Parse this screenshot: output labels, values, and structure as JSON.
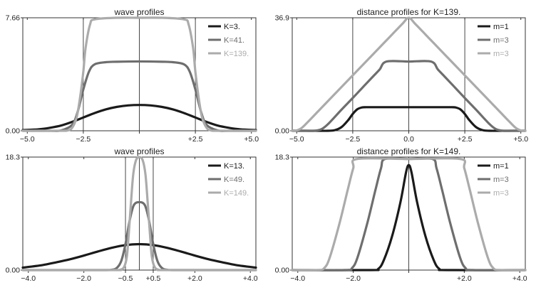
{
  "chart_data": [
    {
      "type": "line",
      "title": "wave profiles",
      "xlim": [
        -5.2,
        5.2
      ],
      "ylim": [
        0,
        7.66
      ],
      "xticks": [
        -5.0,
        -2.5,
        0,
        2.5,
        5.0
      ],
      "xtick_labels": [
        "−5.0",
        "−2.5",
        "",
        "+2.5",
        "+5.0"
      ],
      "yticks": [
        0,
        7.66
      ],
      "ytick_labels": [
        "0.00",
        "7.66"
      ],
      "vlines": [
        -2.5,
        0,
        2.5
      ],
      "legend": "top-right",
      "series": [
        {
          "name": "K=3.",
          "color": "#1a1a1a",
          "x": [
            -5.2,
            -4.5,
            -4,
            -3.5,
            -3,
            -2.5,
            -2,
            -1.5,
            -1,
            -0.5,
            0,
            0.5,
            1,
            1.5,
            2,
            2.5,
            3,
            3.5,
            4,
            4.5,
            5.2
          ],
          "y": [
            0.05,
            0.1,
            0.2,
            0.35,
            0.6,
            0.9,
            1.2,
            1.45,
            1.62,
            1.72,
            1.75,
            1.72,
            1.62,
            1.45,
            1.2,
            0.9,
            0.6,
            0.35,
            0.2,
            0.1,
            0.05
          ]
        },
        {
          "name": "K=41.",
          "color": "#6e6e6e",
          "x": [
            -5.2,
            -4,
            -3.5,
            -3,
            -2.75,
            -2.5,
            -2.25,
            -2,
            -1.5,
            -1,
            0,
            1,
            1.5,
            2,
            2.25,
            2.5,
            2.75,
            3,
            3.5,
            4,
            5.2
          ],
          "y": [
            0,
            0,
            0.02,
            0.4,
            1.3,
            2.8,
            4.0,
            4.5,
            4.65,
            4.68,
            4.7,
            4.68,
            4.65,
            4.5,
            4.0,
            2.8,
            1.3,
            0.4,
            0.02,
            0,
            0
          ]
        },
        {
          "name": "K=139.",
          "color": "#ababab",
          "x": [
            -5.2,
            -3.5,
            -3.2,
            -3,
            -2.8,
            -2.65,
            -2.5,
            -2.4,
            -2.2,
            -2,
            -1,
            0,
            1,
            2,
            2.2,
            2.4,
            2.5,
            2.65,
            2.8,
            3,
            3.2,
            3.5,
            5.2
          ],
          "y": [
            0,
            0,
            0.02,
            0.2,
            0.9,
            2.2,
            4.0,
            5.6,
            7.2,
            7.55,
            7.66,
            7.66,
            7.66,
            7.55,
            7.2,
            5.6,
            4.0,
            2.2,
            0.9,
            0.2,
            0.02,
            0,
            0
          ]
        }
      ]
    },
    {
      "type": "line",
      "title": "distance profiles for K=139.",
      "xlim": [
        -5.2,
        5.2
      ],
      "ylim": [
        0,
        36.9
      ],
      "xticks": [
        -5.0,
        -2.5,
        0,
        2.5,
        5.0
      ],
      "xtick_labels": [
        "−5.0",
        "−2.5",
        "0.0",
        "+2.5",
        "+5.0"
      ],
      "yticks": [
        0,
        36.9
      ],
      "ytick_labels": [
        "0.00",
        "36.9"
      ],
      "vlines": [
        -2.5,
        0,
        2.5
      ],
      "legend": "top-right",
      "series": [
        {
          "name": "m=1",
          "color": "#1a1a1a",
          "x": [
            -5.2,
            -4,
            -3.6,
            -3.3,
            -3,
            -2.7,
            -2.5,
            -2.3,
            -2.1,
            -1.9,
            -1,
            0,
            1,
            1.9,
            2.1,
            2.3,
            2.5,
            2.7,
            3,
            3.3,
            3.6,
            4,
            5.2
          ],
          "y": [
            0,
            0,
            0,
            0.2,
            1.2,
            3.5,
            5.5,
            7.0,
            7.6,
            7.7,
            7.7,
            7.7,
            7.7,
            7.7,
            7.6,
            7.0,
            5.5,
            3.5,
            1.2,
            0.2,
            0,
            0,
            0
          ]
        },
        {
          "name": "m=3",
          "color": "#6e6e6e",
          "x": [
            -5.2,
            -4.6,
            -4.2,
            -3.9,
            -3.6,
            -3,
            -2.5,
            -2,
            -1.6,
            -1.3,
            -1,
            0,
            1,
            1.3,
            1.6,
            2,
            2.5,
            3,
            3.6,
            3.9,
            4.2,
            4.6,
            5.2
          ],
          "y": [
            0,
            0,
            0,
            0.5,
            2.2,
            6.9,
            10.7,
            14.6,
            17.7,
            20.0,
            22.6,
            22.6,
            22.6,
            20.0,
            17.7,
            14.6,
            10.7,
            6.9,
            2.2,
            0.5,
            0,
            0,
            0
          ]
        },
        {
          "name": "m=3",
          "color": "#ababab",
          "x": [
            -5.2,
            -5.05,
            -4.8,
            -4.5,
            -4,
            -3,
            -2,
            -1,
            -0.3,
            0,
            0.3,
            1,
            2,
            3,
            4,
            4.5,
            4.8,
            5.05,
            5.2
          ],
          "y": [
            0,
            0,
            0.8,
            2.9,
            6.7,
            14.3,
            21.9,
            29.5,
            34.8,
            36.9,
            34.8,
            29.5,
            21.9,
            14.3,
            6.7,
            2.9,
            0.8,
            0,
            0
          ]
        }
      ]
    },
    {
      "type": "line",
      "title": "wave profiles",
      "xlim": [
        -4.2,
        4.2
      ],
      "ylim": [
        0,
        18.3
      ],
      "xticks": [
        -4.0,
        -2.0,
        -0.5,
        0.5,
        2.0,
        4.0
      ],
      "xtick_labels": [
        "−4.0",
        "−2.0",
        "−0.5",
        "+0.5",
        "+2.0",
        "+4.0"
      ],
      "yticks": [
        0,
        18.3
      ],
      "ytick_labels": [
        "0.00",
        "18.3"
      ],
      "vlines": [
        -0.5,
        0,
        0.5
      ],
      "legend": "top-right",
      "series": [
        {
          "name": "K=13.",
          "color": "#1a1a1a",
          "x": [
            -4.2,
            -3.5,
            -3,
            -2.5,
            -2,
            -1.5,
            -1,
            -0.5,
            0,
            0.5,
            1,
            1.5,
            2,
            2.5,
            3,
            3.5,
            4.2
          ],
          "y": [
            0.4,
            0.8,
            1.25,
            1.75,
            2.35,
            3.0,
            3.6,
            4.05,
            4.2,
            4.05,
            3.6,
            3.0,
            2.35,
            1.75,
            1.25,
            0.8,
            0.4
          ]
        },
        {
          "name": "K=49.",
          "color": "#6e6e6e",
          "x": [
            -4.2,
            -1.5,
            -1,
            -0.8,
            -0.65,
            -0.5,
            -0.35,
            -0.2,
            0,
            0.2,
            0.35,
            0.5,
            0.65,
            0.8,
            1,
            1.5,
            4.2
          ],
          "y": [
            0,
            0,
            0.05,
            0.4,
            1.5,
            4.2,
            8.0,
            10.5,
            11.0,
            10.5,
            8.0,
            4.2,
            1.5,
            0.4,
            0.05,
            0,
            0
          ]
        },
        {
          "name": "K=149.",
          "color": "#ababab",
          "x": [
            -4.2,
            -1,
            -0.7,
            -0.55,
            -0.45,
            -0.38,
            -0.3,
            -0.22,
            -0.12,
            0,
            0.12,
            0.22,
            0.3,
            0.38,
            0.45,
            0.55,
            0.7,
            1,
            4.2
          ],
          "y": [
            0,
            0,
            0.05,
            0.5,
            2.2,
            6.0,
            11.0,
            15.5,
            17.8,
            18.3,
            17.8,
            15.5,
            11.0,
            6.0,
            2.2,
            0.5,
            0.05,
            0,
            0
          ]
        }
      ]
    },
    {
      "type": "line",
      "title": "distance profiles for K=149.",
      "xlim": [
        -4.2,
        4.2
      ],
      "ylim": [
        0,
        18.3
      ],
      "xticks": [
        -4.0,
        -2.0,
        0,
        2.0,
        4.0
      ],
      "xtick_labels": [
        "−4.0",
        "−2.0",
        "",
        "+2.0",
        "+4.0"
      ],
      "yticks": [
        0,
        18.3
      ],
      "ytick_labels": [
        "0.00",
        "18.3"
      ],
      "vlines": [
        0
      ],
      "legend": "top-right",
      "series": [
        {
          "name": "m=1",
          "color": "#1a1a1a",
          "x": [
            -4.2,
            -1.4,
            -1.1,
            -0.9,
            -0.6,
            -0.3,
            -0.1,
            0,
            0.1,
            0.3,
            0.6,
            0.9,
            1.1,
            1.4,
            4.2
          ],
          "y": [
            0,
            0,
            0.2,
            1.6,
            5.5,
            11.0,
            15.8,
            17.0,
            15.8,
            11.0,
            5.5,
            1.6,
            0.2,
            0,
            0
          ]
        },
        {
          "name": "m=3",
          "color": "#6e6e6e",
          "x": [
            -4.2,
            -2.3,
            -2.05,
            -1.85,
            -1.5,
            -1.2,
            -1.0,
            -0.85,
            0,
            0.85,
            1.0,
            1.2,
            1.5,
            1.85,
            2.05,
            2.3,
            4.2
          ],
          "y": [
            0,
            0,
            0.3,
            2.0,
            7.5,
            13.0,
            16.5,
            18.0,
            18.0,
            18.0,
            16.5,
            13.0,
            7.5,
            2.0,
            0.3,
            0,
            0
          ]
        },
        {
          "name": "m=3",
          "color": "#ababab",
          "x": [
            -4.2,
            -3.3,
            -3.05,
            -2.85,
            -2.5,
            -2.2,
            -2.0,
            -1.85,
            0,
            1.85,
            2.0,
            2.2,
            2.5,
            2.85,
            3.05,
            3.3,
            4.2
          ],
          "y": [
            0,
            0,
            0.3,
            2.0,
            7.5,
            13.0,
            16.5,
            18.0,
            18.0,
            18.0,
            16.5,
            13.0,
            7.5,
            2.0,
            0.3,
            0,
            0
          ]
        }
      ]
    }
  ]
}
